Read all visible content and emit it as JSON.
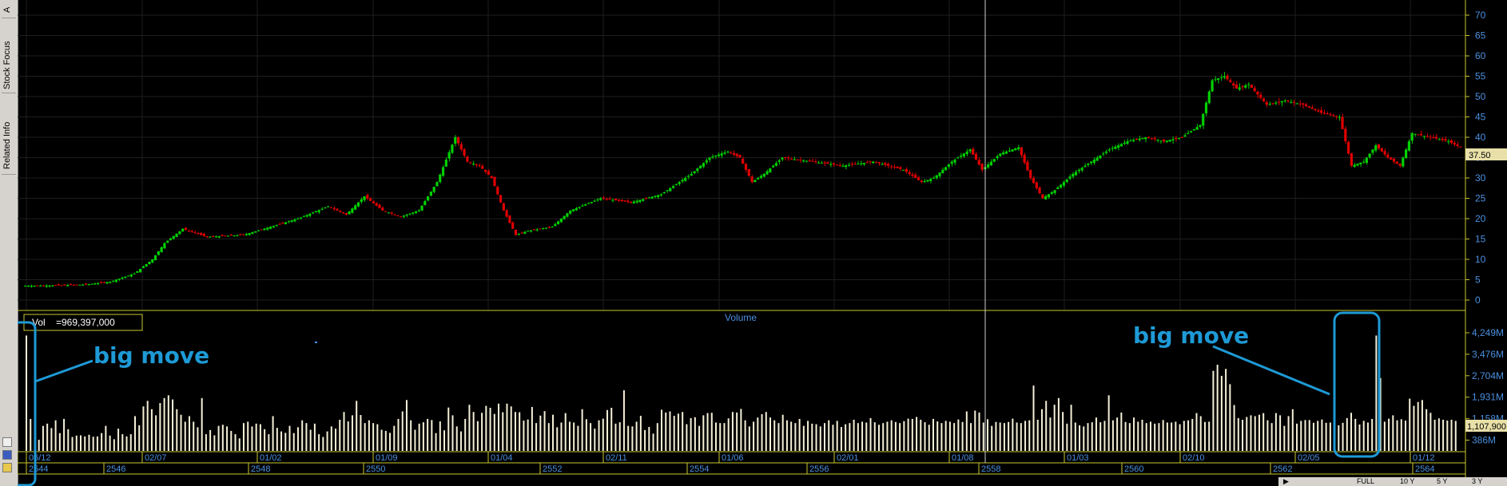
{
  "sidebar": {
    "tabs": [
      {
        "label": "A"
      },
      {
        "label": "Stock Focus"
      },
      {
        "label": "Related Info"
      }
    ]
  },
  "volume_box": {
    "label": "Vol",
    "value": "=969,397,000"
  },
  "volume_title": "Volume",
  "annotations": [
    {
      "text": "big move"
    },
    {
      "text": "big move"
    }
  ],
  "last_price_label": "37.50",
  "last_volume_label": "1,107,900",
  "colors": {
    "up": "#00d000",
    "down": "#e00000",
    "grid": "#1e1e1e",
    "axis_text": "#4a90e0",
    "annotation": "#1e9ad6",
    "volume_bar": "#f5f0d8",
    "frame": "#c8c830"
  },
  "bottom_bar": {
    "buttons": [
      "FULL",
      "10 Y",
      "5 Y",
      "3 Y"
    ]
  },
  "chart_data": [
    {
      "type": "candlestick",
      "title": "",
      "ylim": [
        0,
        72
      ],
      "y_ticks": [
        0,
        5,
        10,
        15,
        20,
        25,
        30,
        35,
        40,
        45,
        50,
        55,
        60,
        65,
        70
      ],
      "x_dates_top": [
        "06/12",
        "02/07",
        "01/02",
        "01/09",
        "01/04",
        "02/11",
        "01/06",
        "02/01",
        "01/08",
        "01/03",
        "02/10",
        "02/05",
        "01/12"
      ],
      "x_years_bottom": [
        "2544",
        "2546",
        "2548",
        "2550",
        "2552",
        "2554",
        "2556",
        "2558",
        "2560",
        "2562",
        "2564"
      ],
      "close_path": [
        [
          0,
          3.5
        ],
        [
          10,
          3.6
        ],
        [
          20,
          3.8
        ],
        [
          28,
          4.5
        ],
        [
          36,
          6.5
        ],
        [
          42,
          10
        ],
        [
          46,
          14
        ],
        [
          52,
          17.5
        ],
        [
          60,
          15.5
        ],
        [
          72,
          16
        ],
        [
          90,
          20
        ],
        [
          100,
          23
        ],
        [
          106,
          21
        ],
        [
          112,
          25.5
        ],
        [
          118,
          22
        ],
        [
          124,
          20.5
        ],
        [
          130,
          22
        ],
        [
          136,
          29
        ],
        [
          142,
          40
        ],
        [
          146,
          34
        ],
        [
          150,
          33
        ],
        [
          154,
          30
        ],
        [
          158,
          22
        ],
        [
          162,
          16
        ],
        [
          166,
          17
        ],
        [
          170,
          17.5
        ],
        [
          174,
          18
        ],
        [
          180,
          22
        ],
        [
          190,
          25
        ],
        [
          200,
          24
        ],
        [
          210,
          26
        ],
        [
          220,
          31
        ],
        [
          226,
          35
        ],
        [
          232,
          36.5
        ],
        [
          236,
          35
        ],
        [
          240,
          29
        ],
        [
          244,
          31
        ],
        [
          250,
          35
        ],
        [
          260,
          34
        ],
        [
          270,
          33
        ],
        [
          280,
          34
        ],
        [
          290,
          32
        ],
        [
          296,
          29
        ],
        [
          300,
          30
        ],
        [
          306,
          34
        ],
        [
          312,
          37
        ],
        [
          316,
          32
        ],
        [
          322,
          36
        ],
        [
          328,
          37.5
        ],
        [
          332,
          30
        ],
        [
          336,
          25
        ],
        [
          340,
          27
        ],
        [
          346,
          31
        ],
        [
          352,
          34
        ],
        [
          358,
          37
        ],
        [
          364,
          39
        ],
        [
          370,
          40
        ],
        [
          376,
          39
        ],
        [
          382,
          40
        ],
        [
          388,
          43
        ],
        [
          392,
          54
        ],
        [
          396,
          55
        ],
        [
          400,
          52
        ],
        [
          404,
          53
        ],
        [
          410,
          48
        ],
        [
          416,
          49
        ],
        [
          422,
          48
        ],
        [
          428,
          46
        ],
        [
          434,
          45
        ],
        [
          438,
          33
        ],
        [
          442,
          34
        ],
        [
          446,
          38
        ],
        [
          450,
          35
        ],
        [
          454,
          33
        ],
        [
          458,
          41
        ],
        [
          464,
          40
        ],
        [
          470,
          39
        ],
        [
          474,
          37.5
        ]
      ]
    },
    {
      "type": "bar",
      "title": "Volume",
      "y_ticks": [
        "386M",
        "1,158M",
        "1,931M",
        "2,704M",
        "3,476M",
        "4,249M"
      ],
      "ylim_m": [
        0,
        4600
      ],
      "bars_m": [
        4150,
        1150,
        1050,
        400,
        900,
        980,
        820,
        1100,
        640,
        1150,
        780,
        500,
        550,
        560,
        520,
        580,
        510,
        520,
        640,
        900,
        550,
        420,
        800,
        600,
        520,
        600,
        1250,
        920,
        1600,
        1800,
        1500,
        1280,
        1720,
        1900,
        2000,
        1850,
        1500,
        1300,
        1050,
        1250,
        1050,
        850,
        1900,
        600,
        750,
        560,
        900,
        940,
        880,
        720,
        600,
        450,
        1000,
        1050,
        880,
        980,
        960,
        780,
        600,
        1250,
        830,
        700,
        650,
        900,
        640,
        850,
        1100,
        1000,
        760,
        980,
        600,
        500,
        700,
        880,
        800,
        1120,
        1400,
        1060,
        1280,
        1800,
        1290,
        1000,
        1100,
        1000,
        960,
        760,
        720,
        650,
        900,
        1150,
        1420,
        1830,
        1100,
        760,
        980,
        1030,
        1150,
        1110,
        640,
        1060,
        740,
        1560,
        1280,
        880,
        700,
        1150,
        1660,
        1400,
        1070,
        1370,
        1620,
        1550,
        1330,
        1700,
        1390,
        1700,
        1600,
        1400,
        1390,
        1090,
        1130,
        1580,
        1000,
        1270,
        1430,
        1000,
        1300,
        850,
        1020,
        1360,
        1050,
        1020,
        900,
        1500,
        1140,
        1000,
        800,
        1100,
        1160,
        1470,
        1550,
        980,
        1030,
        2180,
        900,
        880,
        1050,
        1260,
        750,
        860,
        620,
        1000,
        1480,
        1380,
        1420,
        1260,
        1340,
        1400,
        960,
        1180,
        1210,
        900,
        1280,
        1360,
        1370,
        1020,
        1000,
        1000,
        1170,
        1400,
        1380,
        1510,
        1100,
        880,
        1050,
        1200,
        1320,
        1400,
        1200,
        1100,
        1000,
        1300,
        1100,
        1050,
        1000,
        1150,
        900,
        1080,
        980,
        960,
        880,
        1000,
        1100,
        940,
        1080,
        860,
        960,
        1000,
        1120,
        1000,
        1050,
        1020,
        1180,
        1030,
        940,
        1000,
        1050,
        1100,
        1040,
        1000,
        1070,
        1160,
        1150,
        1220,
        1120,
        1030,
        940,
        1150,
        1060,
        1000,
        1080,
        1050,
        1000,
        1130,
        1040,
        1420,
        1000,
        1450,
        1380,
        1020,
        1140,
        900,
        1040,
        1020,
        1000,
        1040,
        1160,
        1020,
        1000,
        1080,
        1100,
        2350,
        1120,
        1500,
        1800,
        1200,
        1660,
        1900,
        1400,
        980,
        1660,
        1020,
        920,
        880,
        1000,
        1030,
        1200,
        1030,
        1080,
        2000,
        1100,
        1200,
        1380,
        1040,
        1000,
        1200,
        1050,
        1120,
        1000,
        1050,
        980,
        1000,
        1110,
        1020,
        1020,
        1050,
        960,
        1080,
        1100,
        1150,
        1360,
        1250,
        1040,
        1050,
        2880,
        3100,
        2700,
        2950,
        2400,
        1650,
        1180,
        1120,
        1220,
        1280,
        1250,
        1300,
        1360,
        1100,
        1000,
        1360,
        1280,
        900,
        1250,
        1500,
        980,
        1080,
        1110,
        1110,
        1010,
        1080,
        1130,
        1010,
        1020,
        1230,
        920,
        1010,
        1180,
        1370,
        1150,
        950,
        1080,
        1020,
        1150,
        4150,
        2620,
        1050,
        1160,
        1280,
        1100,
        1140,
        1090,
        1880,
        1620,
        1760,
        1830,
        1500,
        1370,
        1120,
        1170,
        1120,
        1090,
        1120,
        1080
      ]
    }
  ]
}
